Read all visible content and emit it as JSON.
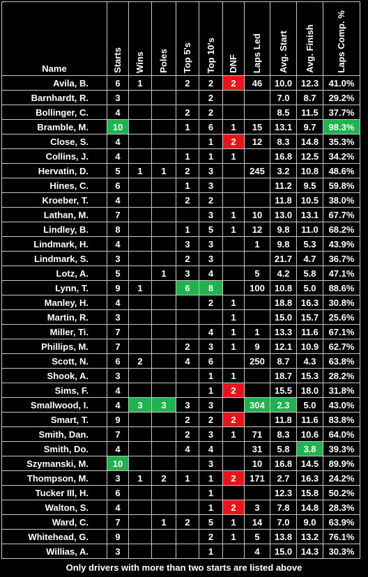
{
  "columns": [
    "Name",
    "Starts",
    "Wins",
    "Poles",
    "Top 5's",
    "Top 10's",
    "DNF",
    "Laps Led",
    "Avg. Start",
    "Avg. Finish",
    "Laps Comp. %"
  ],
  "rows": [
    {
      "cells": [
        "Avila, B.",
        "6",
        "1",
        "",
        "2",
        "2",
        "2",
        "46",
        "10.0",
        "12.3",
        "41.0%"
      ],
      "hl": {
        "6": "red"
      }
    },
    {
      "cells": [
        "Barnhardt, R.",
        "3",
        "",
        "",
        "",
        "2",
        "",
        "",
        "7.0",
        "8.7",
        "29.2%"
      ],
      "hl": {}
    },
    {
      "cells": [
        "Bollinger, C.",
        "4",
        "",
        "",
        "2",
        "2",
        "",
        "",
        "8.5",
        "11.5",
        "37.7%"
      ],
      "hl": {}
    },
    {
      "cells": [
        "Bramble, M.",
        "10",
        "",
        "",
        "1",
        "6",
        "1",
        "15",
        "13.1",
        "9.7",
        "98.3%"
      ],
      "hl": {
        "1": "green",
        "10": "green"
      }
    },
    {
      "cells": [
        "Close, S.",
        "4",
        "",
        "",
        "",
        "1",
        "2",
        "12",
        "8.3",
        "14.8",
        "35.3%"
      ],
      "hl": {
        "6": "red"
      }
    },
    {
      "cells": [
        "Collins, J.",
        "4",
        "",
        "",
        "1",
        "1",
        "1",
        "",
        "16.8",
        "12.5",
        "34.2%"
      ],
      "hl": {}
    },
    {
      "cells": [
        "Hervatin, D.",
        "5",
        "1",
        "1",
        "2",
        "3",
        "",
        "245",
        "3.2",
        "10.8",
        "48.6%"
      ],
      "hl": {}
    },
    {
      "cells": [
        "Hines, C.",
        "6",
        "",
        "",
        "1",
        "3",
        "",
        "",
        "11.2",
        "9.5",
        "59.8%"
      ],
      "hl": {}
    },
    {
      "cells": [
        "Kroeber, T.",
        "4",
        "",
        "",
        "2",
        "2",
        "",
        "",
        "11.8",
        "10.5",
        "38.0%"
      ],
      "hl": {}
    },
    {
      "cells": [
        "Lathan, M.",
        "7",
        "",
        "",
        "",
        "3",
        "1",
        "10",
        "13.0",
        "13.1",
        "67.7%"
      ],
      "hl": {}
    },
    {
      "cells": [
        "Lindley, B.",
        "8",
        "",
        "",
        "1",
        "5",
        "1",
        "12",
        "9.8",
        "11.0",
        "68.2%"
      ],
      "hl": {}
    },
    {
      "cells": [
        "Lindmark, H.",
        "4",
        "",
        "",
        "3",
        "3",
        "",
        "1",
        "9.8",
        "5.3",
        "43.9%"
      ],
      "hl": {}
    },
    {
      "cells": [
        "Lindmark, S.",
        "3",
        "",
        "",
        "2",
        "3",
        "",
        "",
        "21.7",
        "4.7",
        "36.7%"
      ],
      "hl": {}
    },
    {
      "cells": [
        "Lotz, A.",
        "5",
        "",
        "1",
        "3",
        "4",
        "",
        "5",
        "4.2",
        "5.8",
        "47.1%"
      ],
      "hl": {}
    },
    {
      "cells": [
        "Lynn, T.",
        "9",
        "1",
        "",
        "6",
        "8",
        "",
        "100",
        "10.8",
        "5.0",
        "88.6%"
      ],
      "hl": {
        "4": "green",
        "5": "green"
      }
    },
    {
      "cells": [
        "Manley, H.",
        "4",
        "",
        "",
        "",
        "2",
        "1",
        "",
        "18.8",
        "16.3",
        "30.8%"
      ],
      "hl": {}
    },
    {
      "cells": [
        "Martin, R.",
        "3",
        "",
        "",
        "",
        "",
        "1",
        "",
        "15.0",
        "15.7",
        "25.6%"
      ],
      "hl": {}
    },
    {
      "cells": [
        "Miller, Ti.",
        "7",
        "",
        "",
        "",
        "4",
        "1",
        "1",
        "13.3",
        "11.6",
        "67.1%"
      ],
      "hl": {}
    },
    {
      "cells": [
        "Phillips, M.",
        "7",
        "",
        "",
        "2",
        "3",
        "1",
        "9",
        "12.1",
        "10.9",
        "62.7%"
      ],
      "hl": {}
    },
    {
      "cells": [
        "Scott, N.",
        "6",
        "2",
        "",
        "4",
        "6",
        "",
        "250",
        "8.7",
        "4.3",
        "63.8%"
      ],
      "hl": {}
    },
    {
      "cells": [
        "Shook, A.",
        "3",
        "",
        "",
        "",
        "1",
        "1",
        "",
        "18.7",
        "15.3",
        "28.2%"
      ],
      "hl": {}
    },
    {
      "cells": [
        "Sims, F.",
        "4",
        "",
        "",
        "",
        "1",
        "2",
        "",
        "15.5",
        "18.0",
        "31.8%"
      ],
      "hl": {
        "6": "red"
      }
    },
    {
      "cells": [
        "Smallwood, I.",
        "4",
        "3",
        "3",
        "3",
        "3",
        "",
        "304",
        "2.3",
        "5.0",
        "43.0%"
      ],
      "hl": {
        "2": "green",
        "3": "green",
        "7": "green",
        "8": "green"
      }
    },
    {
      "cells": [
        "Smart, T.",
        "9",
        "",
        "",
        "2",
        "2",
        "2",
        "",
        "11.8",
        "11.6",
        "83.8%"
      ],
      "hl": {
        "6": "red"
      }
    },
    {
      "cells": [
        "Smith, Dan.",
        "7",
        "",
        "",
        "2",
        "3",
        "1",
        "71",
        "8.3",
        "10.6",
        "64.0%"
      ],
      "hl": {}
    },
    {
      "cells": [
        "Smith, Do.",
        "4",
        "",
        "",
        "4",
        "4",
        "",
        "31",
        "5.8",
        "3.8",
        "39.3%"
      ],
      "hl": {
        "9": "green"
      }
    },
    {
      "cells": [
        "Szymanski, M.",
        "10",
        "",
        "",
        "",
        "3",
        "",
        "10",
        "16.8",
        "14.5",
        "89.9%"
      ],
      "hl": {
        "1": "green"
      }
    },
    {
      "cells": [
        "Thompson, M.",
        "3",
        "1",
        "2",
        "1",
        "1",
        "2",
        "171",
        "2.7",
        "16.3",
        "24.2%"
      ],
      "hl": {
        "6": "red"
      }
    },
    {
      "cells": [
        "Tucker III, H.",
        "6",
        "",
        "",
        "",
        "1",
        "",
        "",
        "12.3",
        "15.8",
        "50.2%"
      ],
      "hl": {}
    },
    {
      "cells": [
        "Walton, S.",
        "4",
        "",
        "",
        "",
        "1",
        "2",
        "3",
        "7.8",
        "14.8",
        "28.3%"
      ],
      "hl": {
        "6": "red"
      }
    },
    {
      "cells": [
        "Ward, C.",
        "7",
        "",
        "1",
        "2",
        "5",
        "1",
        "14",
        "7.0",
        "9.0",
        "63.9%"
      ],
      "hl": {}
    },
    {
      "cells": [
        "Whitehead, G.",
        "9",
        "",
        "",
        "",
        "2",
        "1",
        "5",
        "13.8",
        "13.2",
        "76.1%"
      ],
      "hl": {}
    },
    {
      "cells": [
        "Willias, A.",
        "3",
        "",
        "",
        "",
        "1",
        "",
        "4",
        "15.0",
        "14.3",
        "30.3%"
      ],
      "hl": {}
    }
  ],
  "footer": "Only drivers with more than two starts are listed above",
  "colors": {
    "highlight_green": "#1fb24f",
    "highlight_red": "#e8141b",
    "background": "#000000"
  }
}
